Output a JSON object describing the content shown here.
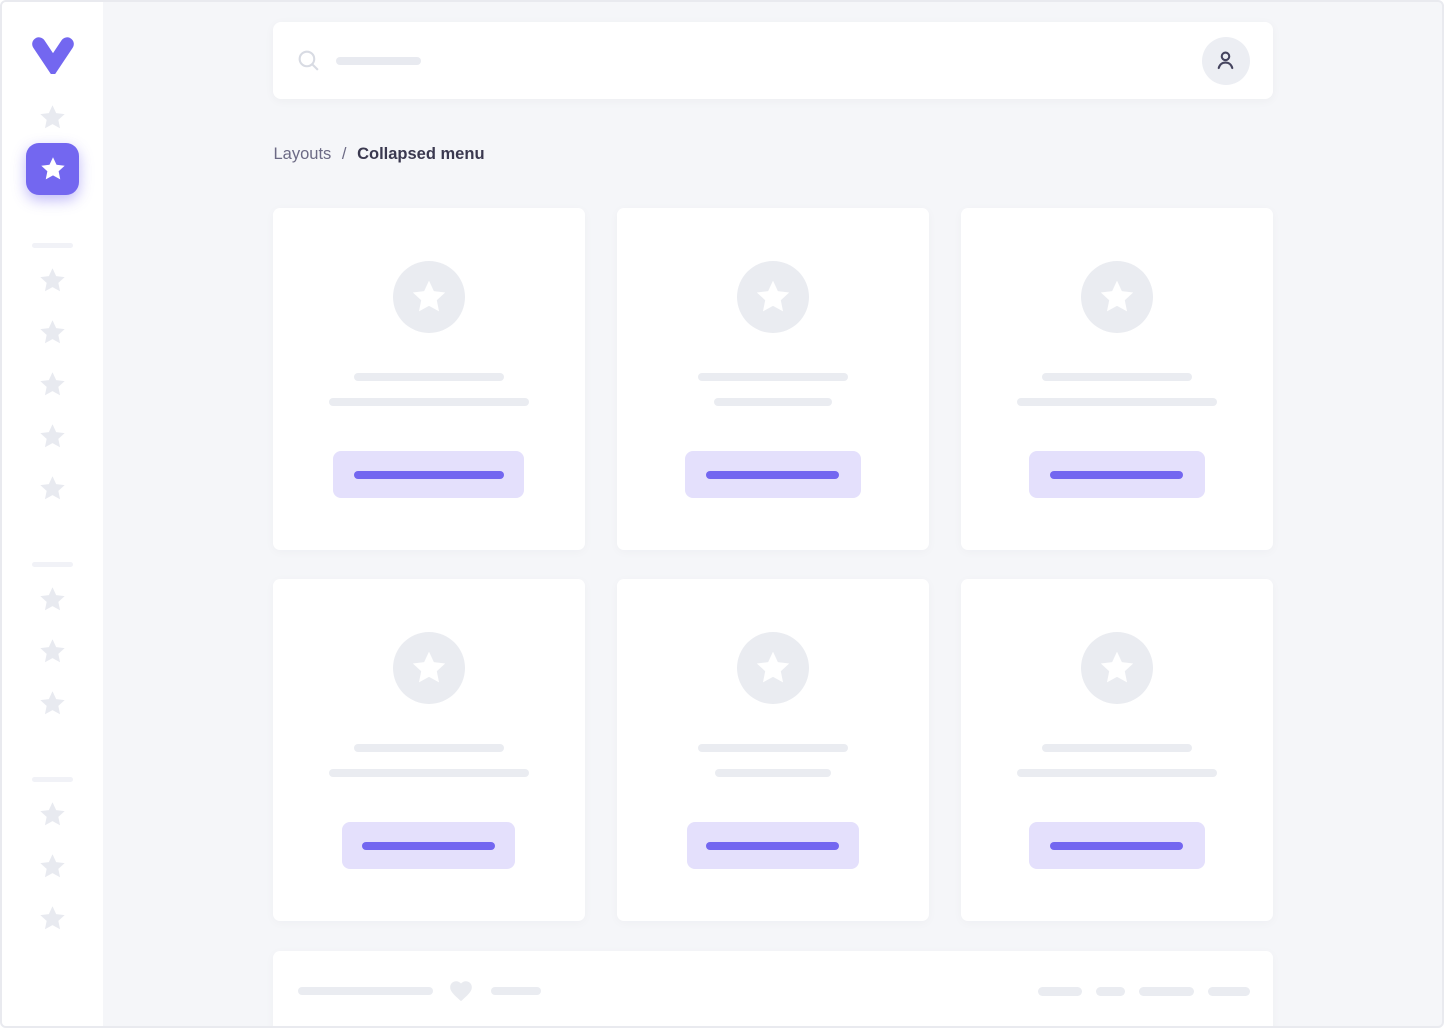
{
  "colors": {
    "primary": "#7367f0",
    "primary_light": "#e4e0fc",
    "placeholder_gray": "#eaecf1",
    "sidebar_icon_gray": "#e8eaf0",
    "background": "#f5f6f9",
    "card_background": "#ffffff",
    "breadcrumb_text": "#6c6a85",
    "breadcrumb_current_text": "#3b3950"
  },
  "sidebar": {
    "logo_icon": "vuesax-logo",
    "items": [
      {
        "type": "item",
        "icon": "star-icon",
        "active": false
      },
      {
        "type": "item",
        "icon": "star-icon",
        "active": true
      },
      {
        "type": "divider"
      },
      {
        "type": "item",
        "icon": "star-icon",
        "active": false
      },
      {
        "type": "item",
        "icon": "star-icon",
        "active": false
      },
      {
        "type": "item",
        "icon": "star-icon",
        "active": false
      },
      {
        "type": "item",
        "icon": "star-icon",
        "active": false
      },
      {
        "type": "item",
        "icon": "star-icon",
        "active": false
      },
      {
        "type": "divider"
      },
      {
        "type": "item",
        "icon": "star-icon",
        "active": false
      },
      {
        "type": "item",
        "icon": "star-icon",
        "active": false
      },
      {
        "type": "item",
        "icon": "star-icon",
        "active": false
      },
      {
        "type": "divider"
      },
      {
        "type": "item",
        "icon": "star-icon",
        "active": false
      },
      {
        "type": "item",
        "icon": "star-icon",
        "active": false
      },
      {
        "type": "item",
        "icon": "star-icon",
        "active": false
      }
    ]
  },
  "header": {
    "search_icon": "search-icon",
    "search_placeholder_line_width": 85,
    "avatar_icon": "user-icon"
  },
  "breadcrumb": {
    "parent": "Layouts",
    "separator": "/",
    "current": "Collapsed menu"
  },
  "grid": {
    "cards": [
      {
        "icon": "star-icon",
        "line1_width": 150,
        "line2_width": 200,
        "button_width": 191,
        "button_bar_width": 150
      },
      {
        "icon": "star-icon",
        "line1_width": 150,
        "line2_width": 118,
        "button_width": 176,
        "button_bar_width": 133
      },
      {
        "icon": "star-icon",
        "line1_width": 150,
        "line2_width": 200,
        "button_width": 176,
        "button_bar_width": 133
      },
      {
        "icon": "star-icon",
        "line1_width": 150,
        "line2_width": 200,
        "button_width": 173,
        "button_bar_width": 133
      },
      {
        "icon": "star-icon",
        "line1_width": 150,
        "line2_width": 116,
        "button_width": 172,
        "button_bar_width": 133
      },
      {
        "icon": "star-icon",
        "line1_width": 150,
        "line2_width": 200,
        "button_width": 176,
        "button_bar_width": 133
      }
    ]
  },
  "footer": {
    "left_line_widths": [
      135,
      50
    ],
    "heart_icon": "heart-icon",
    "right_pill_widths": [
      44,
      29,
      55,
      42
    ]
  }
}
